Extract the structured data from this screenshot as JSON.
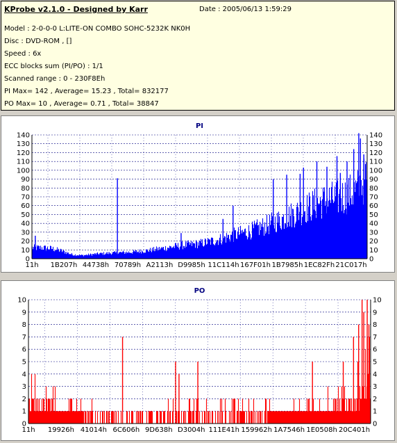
{
  "header": {
    "title": "KProbe v2.1.0 - Designed by Karr",
    "date": "Date : 2005/06/13 1:59:29",
    "lines": [
      "Model : 2-0-0-0 L:LITE-ON COMBO SOHC-5232K NK0H",
      "Disc : DVD-ROM ,  []",
      "Speed : 6x",
      "ECC blocks sum (PI/PO) : 1/1",
      "Scanned range : 0 - 230F8Eh",
      "PI Max= 142 , Average= 15.23 , Total= 832177",
      "PO Max= 10 , Average= 0.71 , Total= 38847"
    ]
  },
  "colors": {
    "pi": "#0000ff",
    "po": "#ff0000",
    "grid": "#000080"
  },
  "chart_data": [
    {
      "type": "area",
      "title": "PI",
      "ylim": [
        0,
        140
      ],
      "yticks": [
        0,
        10,
        20,
        30,
        40,
        50,
        60,
        70,
        80,
        90,
        100,
        110,
        120,
        130,
        140
      ],
      "xrange_hex": [
        "0",
        "230F8E"
      ],
      "xtick_labels": [
        "11h",
        "1B207h",
        "44738h",
        "70789h",
        "A2113h",
        "D9985h",
        "11C114h",
        "167F01h",
        "1B7985h",
        "1EC82Fh",
        "21C017h"
      ],
      "profile_x_fraction": [
        0,
        0.03,
        0.06,
        0.09,
        0.12,
        0.15,
        0.2,
        0.25,
        0.3,
        0.35,
        0.4,
        0.45,
        0.5,
        0.55,
        0.6,
        0.65,
        0.7,
        0.75,
        0.8,
        0.85,
        0.88,
        0.91,
        0.94,
        0.97,
        1
      ],
      "profile_avg": [
        13,
        13,
        12,
        9,
        5,
        4,
        6,
        7,
        8,
        10,
        13,
        16,
        18,
        22,
        28,
        33,
        40,
        48,
        57,
        66,
        70,
        72,
        76,
        82,
        98
      ],
      "spikes": [
        {
          "x_fraction": 0.01,
          "value": 26
        },
        {
          "x_fraction": 0.255,
          "value": 91
        },
        {
          "x_fraction": 0.445,
          "value": 29
        },
        {
          "x_fraction": 0.57,
          "value": 45
        },
        {
          "x_fraction": 0.6,
          "value": 60
        },
        {
          "x_fraction": 0.72,
          "value": 90
        },
        {
          "x_fraction": 0.76,
          "value": 95
        },
        {
          "x_fraction": 0.8,
          "value": 96
        },
        {
          "x_fraction": 0.81,
          "value": 103
        },
        {
          "x_fraction": 0.85,
          "value": 110
        },
        {
          "x_fraction": 0.88,
          "value": 104
        },
        {
          "x_fraction": 0.91,
          "value": 116
        },
        {
          "x_fraction": 0.92,
          "value": 97
        },
        {
          "x_fraction": 0.94,
          "value": 110
        },
        {
          "x_fraction": 0.96,
          "value": 124
        },
        {
          "x_fraction": 0.975,
          "value": 142
        },
        {
          "x_fraction": 0.98,
          "value": 136
        },
        {
          "x_fraction": 0.99,
          "value": 118
        }
      ]
    },
    {
      "type": "bar",
      "title": "PO",
      "ylim": [
        0,
        10
      ],
      "yticks": [
        0,
        1,
        2,
        3,
        4,
        5,
        6,
        7,
        8,
        9,
        10
      ],
      "xrange_hex": [
        "0",
        "230F8E"
      ],
      "xtick_labels": [
        "11h",
        "19926h",
        "41014h",
        "6C606h",
        "9D638h",
        "D3004h",
        "111E41h",
        "159962h",
        "1A7546h",
        "1E0508h",
        "20C401h"
      ],
      "profile_x_fraction": [
        0,
        0.05,
        0.1,
        0.2,
        0.3,
        0.4,
        0.5,
        0.6,
        0.7,
        0.8,
        0.85,
        0.9,
        0.95,
        1
      ],
      "profile_avg": [
        1.6,
        1.4,
        0.9,
        0.6,
        0.5,
        0.6,
        0.6,
        0.6,
        0.7,
        0.9,
        1.0,
        1.2,
        1.6,
        3
      ],
      "spikes": [
        {
          "x_fraction": 0.275,
          "value": 7
        },
        {
          "x_fraction": 0.43,
          "value": 5
        },
        {
          "x_fraction": 0.44,
          "value": 4
        },
        {
          "x_fraction": 0.495,
          "value": 5
        },
        {
          "x_fraction": 0.83,
          "value": 5
        },
        {
          "x_fraction": 0.92,
          "value": 5
        },
        {
          "x_fraction": 0.95,
          "value": 7
        },
        {
          "x_fraction": 0.965,
          "value": 8
        },
        {
          "x_fraction": 0.975,
          "value": 10
        },
        {
          "x_fraction": 0.98,
          "value": 9
        },
        {
          "x_fraction": 0.99,
          "value": 10
        },
        {
          "x_fraction": 0.995,
          "value": 8
        }
      ]
    }
  ]
}
